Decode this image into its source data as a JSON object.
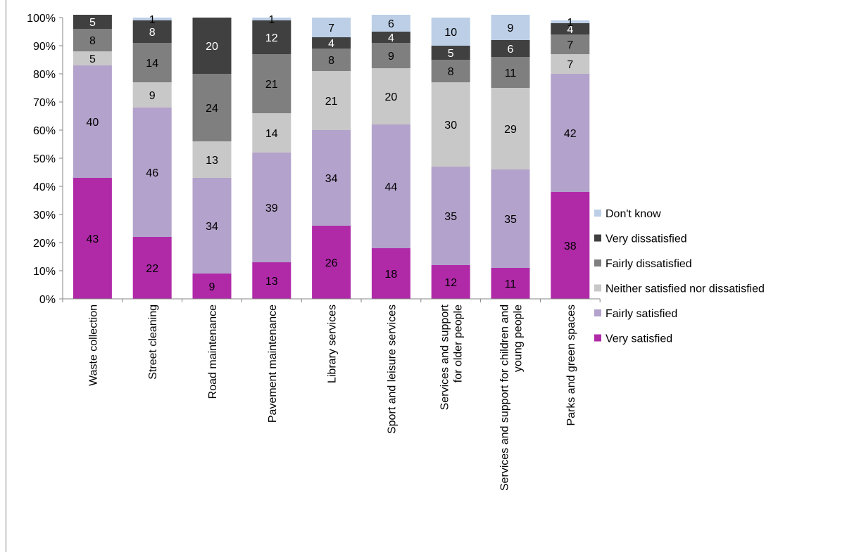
{
  "chart_data": {
    "type": "bar",
    "stacked": true,
    "percent_axis": true,
    "title": "",
    "xlabel": "",
    "ylabel": "",
    "ylim": [
      0,
      100
    ],
    "yticks": [
      "0%",
      "10%",
      "20%",
      "30%",
      "40%",
      "50%",
      "60%",
      "70%",
      "80%",
      "90%",
      "100%"
    ],
    "grid": false,
    "legend_position": "right",
    "categories": [
      [
        "Waste collection"
      ],
      [
        "Street cleaning"
      ],
      [
        "Road maintenance"
      ],
      [
        "Pavement maintenance"
      ],
      [
        "Library services"
      ],
      [
        "Sport and leisure services"
      ],
      [
        "Services and support",
        "for older people"
      ],
      [
        "Services and support for children and",
        "young people"
      ],
      [
        "Parks and green spaces"
      ]
    ],
    "series": [
      {
        "name": "Very satisfied",
        "color": "#b02aa8",
        "label_color": "#000000",
        "values": [
          43,
          22,
          9,
          13,
          26,
          18,
          12,
          11,
          38
        ]
      },
      {
        "name": "Fairly satisfied",
        "color": "#b3a2cb",
        "label_color": "#000000",
        "values": [
          40,
          46,
          34,
          39,
          34,
          44,
          35,
          35,
          42
        ]
      },
      {
        "name": "Neither satisfied nor dissatisfied",
        "color": "#c8c8c8",
        "label_color": "#000000",
        "values": [
          5,
          9,
          13,
          14,
          21,
          20,
          30,
          29,
          7
        ]
      },
      {
        "name": "Fairly dissatisfied",
        "color": "#7f7f7f",
        "label_color": "#000000",
        "values": [
          8,
          14,
          24,
          21,
          8,
          9,
          8,
          11,
          7
        ]
      },
      {
        "name": "Very dissatisfied",
        "color": "#404040",
        "label_color": "#ffffff",
        "values": [
          5,
          8,
          20,
          12,
          4,
          4,
          5,
          6,
          4
        ]
      },
      {
        "name": "Don't know",
        "color": "#bccfe6",
        "label_color": "#000000",
        "values": [
          0,
          1,
          0,
          1,
          7,
          6,
          10,
          9,
          1
        ]
      }
    ]
  }
}
